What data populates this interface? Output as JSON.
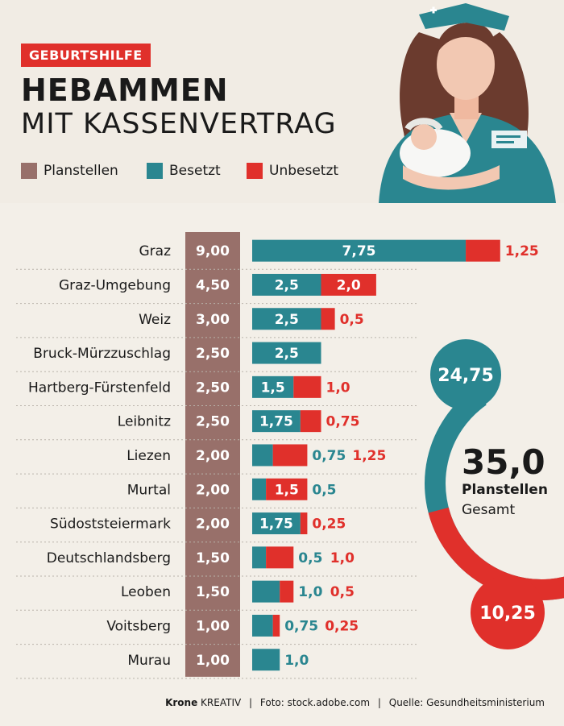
{
  "header": {
    "badge": "GEBURTSHILFE",
    "title": "HEBAMMEN",
    "subtitle": "MIT KASSENVERTRAG"
  },
  "legend": [
    {
      "label": "Planstellen",
      "color": "#98706a"
    },
    {
      "label": "Besetzt",
      "color": "#2a8690"
    },
    {
      "label": "Unbesetzt",
      "color": "#e0302b"
    }
  ],
  "colors": {
    "plan": "#98706a",
    "filled": "#2a8690",
    "open": "#e0302b",
    "badge": "#e0302b",
    "background": "#f3efe8"
  },
  "chart_data": {
    "type": "bar",
    "stacked": true,
    "orientation": "horizontal",
    "categories": [
      "Graz",
      "Graz-Umgebung",
      "Weiz",
      "Bruck-Mürzzuschlag",
      "Hartberg-Fürstenfeld",
      "Leibnitz",
      "Liezen",
      "Murtal",
      "Südoststeiermark",
      "Deutschlandsberg",
      "Leoben",
      "Voitsberg",
      "Murau"
    ],
    "series": [
      {
        "name": "Planstellen",
        "values": [
          9.0,
          4.5,
          3.0,
          2.5,
          2.5,
          2.5,
          2.0,
          2.0,
          2.0,
          1.5,
          1.5,
          1.0,
          1.0
        ],
        "labels": [
          "9,00",
          "4,50",
          "3,00",
          "2,50",
          "2,50",
          "2,50",
          "2,00",
          "2,00",
          "2,00",
          "1,50",
          "1,50",
          "1,00",
          "1,00"
        ]
      },
      {
        "name": "Besetzt",
        "values": [
          7.75,
          2.5,
          2.5,
          2.5,
          1.5,
          1.75,
          0.75,
          0.5,
          1.75,
          0.5,
          1.0,
          0.75,
          1.0
        ],
        "labels": [
          "7,75",
          "2,5",
          "2,5",
          "2,5",
          "1,5",
          "1,75",
          "0,75",
          "0,5",
          "1,75",
          "0,5",
          "1,0",
          "0,75",
          "1,0"
        ]
      },
      {
        "name": "Unbesetzt",
        "values": [
          1.25,
          2.0,
          0.5,
          0,
          1.0,
          0.75,
          1.25,
          1.5,
          0.25,
          1.0,
          0.5,
          0.25,
          0
        ],
        "labels": [
          "1,25",
          "2,0",
          "0,5",
          "",
          "1,0",
          "0,75",
          "1,25",
          "1,5",
          "0,25",
          "1,0",
          "0,5",
          "0,25",
          ""
        ]
      }
    ],
    "totals": {
      "filled": "24,75",
      "open": "10,25",
      "plan": "35,0",
      "plan_label": "Planstellen",
      "plan_sub": "Gesamt",
      "filled_value": 24.75,
      "open_value": 10.25
    }
  },
  "footer": {
    "brand_bold": "Krone",
    "brand": "KREATIV",
    "photo": "Foto: stock.adobe.com",
    "source": "Quelle: Gesundheitsministerium"
  }
}
